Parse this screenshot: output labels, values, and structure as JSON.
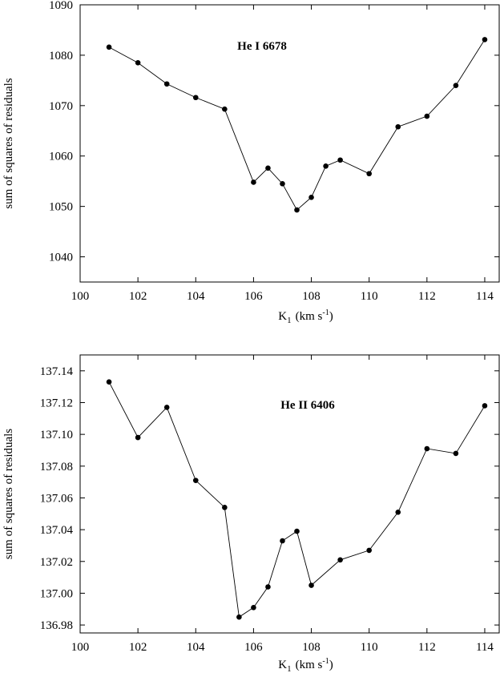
{
  "chart_data": [
    {
      "type": "line",
      "annotation": "He I 6678",
      "xlabel_main": "K",
      "xlabel_sub": "1",
      "xlabel_unit": "(km s",
      "xlabel_sup": "-1",
      "xlabel_close": ")",
      "ylabel": "sum of squares of residuals",
      "xlim": [
        100,
        114.5
      ],
      "ylim": [
        1035,
        1090
      ],
      "xticks": [
        100,
        102,
        104,
        106,
        108,
        110,
        112,
        114
      ],
      "yticks": [
        1040,
        1050,
        1060,
        1070,
        1080,
        1090
      ],
      "ydecimals": 0,
      "x": [
        101,
        102,
        103,
        104,
        105,
        106,
        106.5,
        107,
        107.5,
        108,
        108.5,
        109,
        110,
        111,
        112,
        113,
        114
      ],
      "y": [
        1081.6,
        1078.5,
        1074.3,
        1071.6,
        1069.3,
        1054.8,
        1057.6,
        1054.5,
        1049.3,
        1051.8,
        1058.0,
        1059.2,
        1056.5,
        1065.8,
        1067.9,
        1074.0,
        1083.1
      ],
      "grid": false
    },
    {
      "type": "line",
      "annotation": "He II 6406",
      "xlabel_main": "K",
      "xlabel_sub": "1",
      "xlabel_unit": "(km s",
      "xlabel_sup": "-1",
      "xlabel_close": ")",
      "ylabel": "sum of squares of residuals",
      "xlim": [
        100,
        114.5
      ],
      "ylim": [
        136.975,
        137.15
      ],
      "xticks": [
        100,
        102,
        104,
        106,
        108,
        110,
        112,
        114
      ],
      "yticks": [
        136.98,
        137.0,
        137.02,
        137.04,
        137.06,
        137.08,
        137.1,
        137.12,
        137.14
      ],
      "ydecimals": 2,
      "x": [
        101,
        102,
        103,
        104,
        105,
        105.5,
        106,
        106.5,
        107,
        107.5,
        108,
        109,
        110,
        111,
        112,
        113,
        114
      ],
      "y": [
        137.133,
        137.098,
        137.117,
        137.071,
        137.054,
        136.985,
        136.991,
        137.004,
        137.033,
        137.039,
        137.005,
        137.021,
        137.027,
        137.051,
        137.091,
        137.088,
        137.118
      ],
      "grid": false
    }
  ]
}
